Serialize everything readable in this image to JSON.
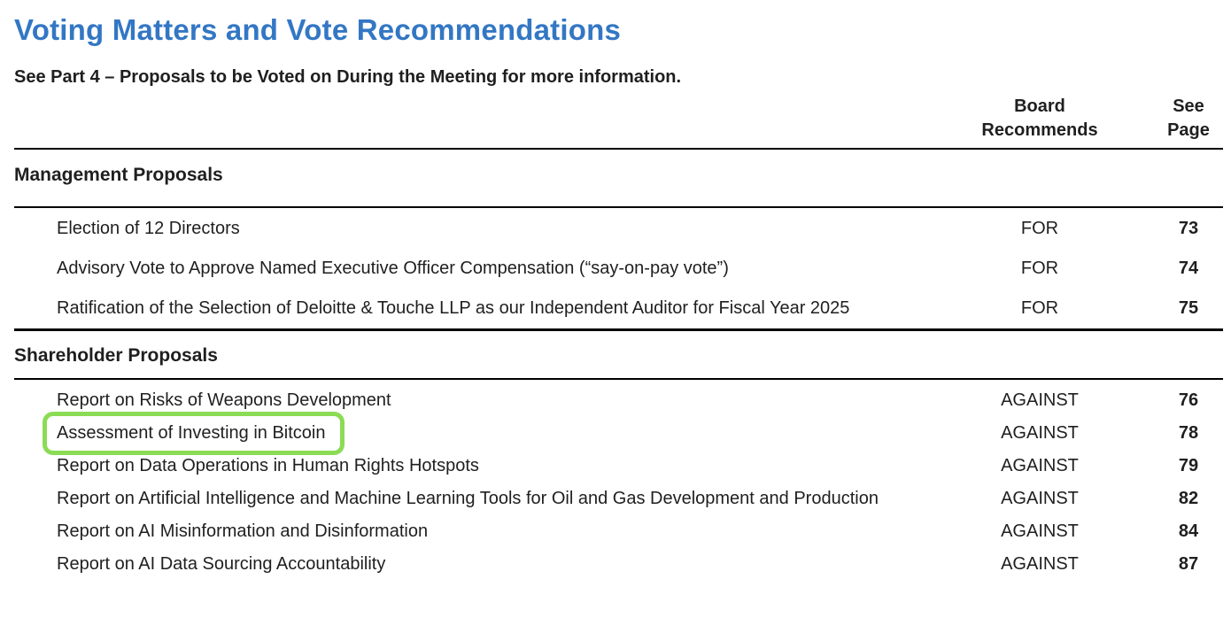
{
  "page": {
    "title": "Voting Matters and Vote Recommendations",
    "subtitle": "See Part 4 – Proposals to be Voted on During the Meeting for more information."
  },
  "table": {
    "header": {
      "board": [
        "Board",
        "Recommends"
      ],
      "see_page": [
        "See",
        "Page"
      ]
    },
    "sections": [
      {
        "title": "Management Proposals",
        "rows": [
          {
            "proposal": "Election of 12 Directors",
            "recommendation": "FOR",
            "page": "73"
          },
          {
            "proposal": "Advisory Vote to Approve Named Executive Officer Compensation (“say-on-pay vote”)",
            "recommendation": "FOR",
            "page": "74"
          },
          {
            "proposal": "Ratification of the Selection of Deloitte & Touche LLP as our Independent Auditor for Fiscal Year 2025",
            "recommendation": "FOR",
            "page": "75"
          }
        ]
      },
      {
        "title": "Shareholder Proposals",
        "rows": [
          {
            "proposal": "Report on Risks of Weapons Development",
            "recommendation": "AGAINST",
            "page": "76"
          },
          {
            "proposal": "Assessment of Investing in Bitcoin",
            "recommendation": "AGAINST",
            "page": "78",
            "highlighted": true
          },
          {
            "proposal": "Report on Data Operations in Human Rights Hotspots",
            "recommendation": "AGAINST",
            "page": "79"
          },
          {
            "proposal": "Report on Artificial Intelligence and Machine Learning Tools for Oil and Gas Development and Production",
            "recommendation": "AGAINST",
            "page": "82"
          },
          {
            "proposal": "Report on AI Misinformation and Disinformation",
            "recommendation": "AGAINST",
            "page": "84"
          },
          {
            "proposal": "Report on AI Data Sourcing Accountability",
            "recommendation": "AGAINST",
            "page": "87"
          }
        ]
      }
    ]
  },
  "colors": {
    "title_blue": "#3377c4",
    "highlight_green": "#8bdc55",
    "text": "#1f1f1f",
    "rule": "#000000"
  }
}
